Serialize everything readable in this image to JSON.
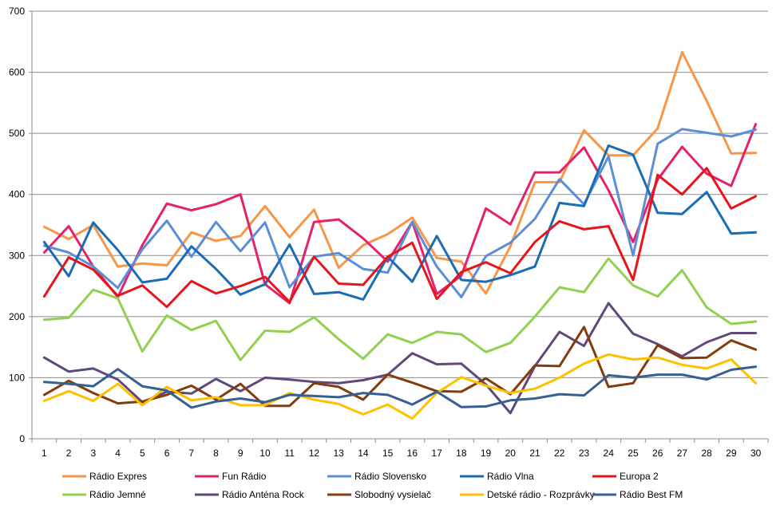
{
  "chart_data": {
    "type": "line",
    "title": "",
    "xlabel": "",
    "ylabel": "",
    "ylim": [
      0,
      700
    ],
    "yticks": [
      0,
      100,
      200,
      300,
      400,
      500,
      600,
      700
    ],
    "grid": "horizontal",
    "legend_position": "bottom",
    "categories": [
      "1",
      "2",
      "3",
      "4",
      "5",
      "6",
      "7",
      "8",
      "9",
      "10",
      "11",
      "12",
      "13",
      "14",
      "15",
      "16",
      "17",
      "18",
      "19",
      "20",
      "21",
      "22",
      "23",
      "24",
      "25",
      "26",
      "27",
      "28",
      "29",
      "30"
    ],
    "series": [
      {
        "name": "Rádio Expres",
        "color": "#f79646",
        "values": [
          347,
          327,
          350,
          282,
          287,
          284,
          338,
          324,
          332,
          381,
          330,
          375,
          280,
          317,
          335,
          362,
          296,
          290,
          238,
          315,
          420,
          420,
          505,
          464,
          464,
          508,
          633,
          553,
          467,
          468
        ]
      },
      {
        "name": "Fun Rádio",
        "color": "#e6216c",
        "values": [
          305,
          348,
          282,
          232,
          317,
          385,
          374,
          384,
          400,
          253,
          222,
          355,
          359,
          328,
          290,
          355,
          237,
          267,
          377,
          351,
          436,
          436,
          477,
          407,
          322,
          424,
          478,
          434,
          414,
          515
        ]
      },
      {
        "name": "Rádio Slovensko",
        "color": "#5b8ed6",
        "values": [
          316,
          305,
          282,
          247,
          310,
          357,
          298,
          355,
          307,
          354,
          248,
          298,
          304,
          278,
          272,
          355,
          282,
          232,
          299,
          321,
          360,
          425,
          384,
          462,
          300,
          483,
          507,
          501,
          495,
          506
        ]
      },
      {
        "name": "Rádio Vlna",
        "color": "#1a6db5",
        "values": [
          322,
          266,
          354,
          309,
          256,
          262,
          315,
          278,
          236,
          253,
          318,
          237,
          240,
          228,
          298,
          257,
          332,
          260,
          257,
          268,
          282,
          386,
          381,
          480,
          465,
          370,
          368,
          404,
          336,
          338
        ]
      },
      {
        "name": "Europa 2",
        "color": "#e8141b",
        "values": [
          233,
          297,
          277,
          234,
          251,
          216,
          258,
          238,
          250,
          265,
          224,
          298,
          254,
          252,
          298,
          321,
          229,
          273,
          289,
          271,
          322,
          356,
          343,
          348,
          260,
          432,
          400,
          443,
          377,
          397
        ]
      },
      {
        "name": "Rádio Jemné",
        "color": "#92d050",
        "values": [
          195,
          198,
          244,
          230,
          143,
          202,
          178,
          193,
          129,
          177,
          175,
          199,
          163,
          131,
          171,
          157,
          175,
          171,
          142,
          157,
          200,
          248,
          240,
          295,
          251,
          233,
          276,
          215,
          188,
          192
        ]
      },
      {
        "name": "Rádio Anténa Rock",
        "color": "#60497a",
        "values": [
          133,
          110,
          115,
          97,
          60,
          77,
          74,
          98,
          78,
          100,
          97,
          93,
          91,
          96,
          105,
          140,
          122,
          123,
          89,
          42,
          119,
          175,
          152,
          222,
          172,
          155,
          135,
          158,
          173,
          173
        ]
      },
      {
        "name": "Slobodný vysielač",
        "color": "#843c0c",
        "values": [
          72,
          95,
          75,
          58,
          61,
          72,
          87,
          64,
          90,
          54,
          54,
          91,
          85,
          64,
          105,
          92,
          78,
          77,
          99,
          73,
          120,
          119,
          183,
          85,
          91,
          153,
          132,
          133,
          161,
          146
        ]
      },
      {
        "name": "Detské rádio - Rozprávky",
        "color": "#ffc000",
        "values": [
          62,
          78,
          62,
          90,
          55,
          85,
          63,
          68,
          55,
          55,
          75,
          64,
          57,
          40,
          56,
          33,
          75,
          101,
          87,
          75,
          82,
          100,
          123,
          138,
          130,
          133,
          121,
          115,
          130,
          91
        ]
      },
      {
        "name": "Rádio Best FM",
        "color": "#376092",
        "values": [
          93,
          90,
          86,
          114,
          86,
          79,
          51,
          61,
          66,
          60,
          72,
          70,
          68,
          75,
          72,
          56,
          77,
          52,
          53,
          63,
          66,
          73,
          71,
          104,
          100,
          105,
          105,
          97,
          113,
          118
        ]
      }
    ]
  }
}
